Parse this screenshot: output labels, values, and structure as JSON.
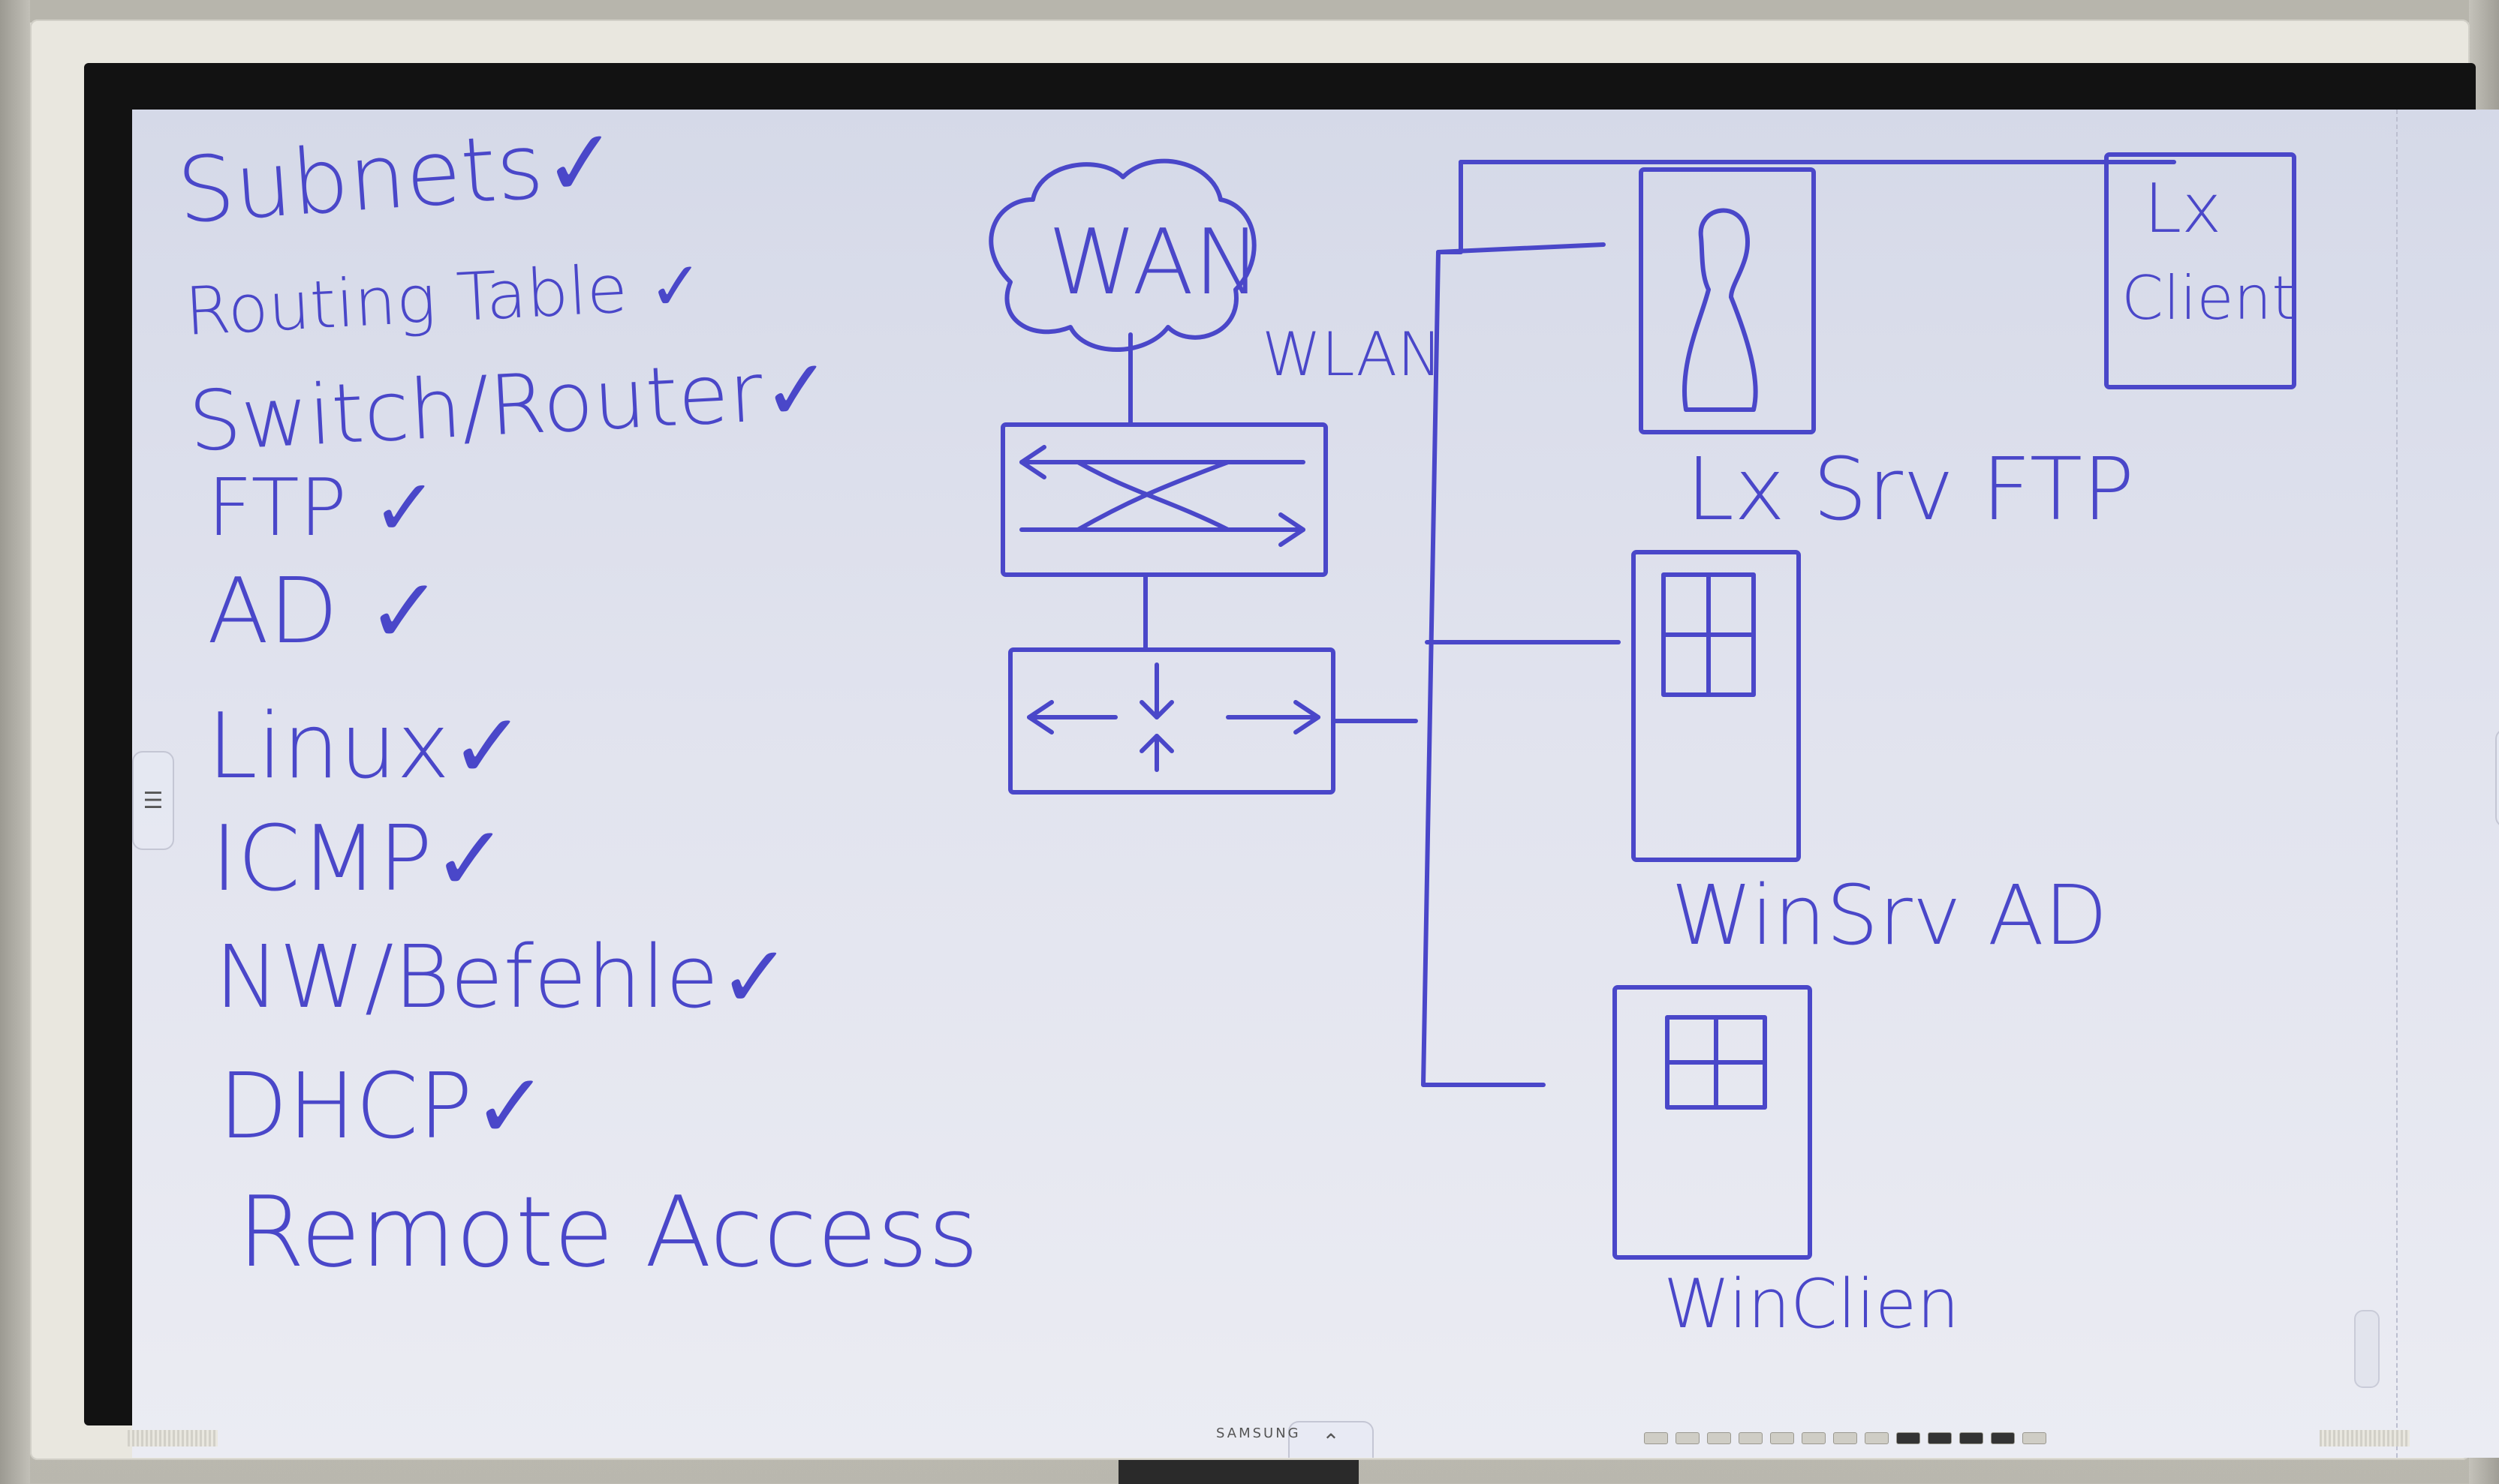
{
  "checklist": {
    "items": [
      {
        "label": "Subnets",
        "mark": "✓"
      },
      {
        "label": "Routing Table",
        "mark": "✓"
      },
      {
        "label": "Switch/Router",
        "mark": "✓"
      },
      {
        "label": "FTP",
        "mark": "✓"
      },
      {
        "label": "AD",
        "mark": "✓"
      },
      {
        "label": "Linux",
        "mark": "✓"
      },
      {
        "label": "ICMP",
        "mark": "✓"
      },
      {
        "label": "NW/Befehle",
        "mark": "✓"
      },
      {
        "label": "DHCP",
        "mark": "✓"
      },
      {
        "label": "Remote Access",
        "mark": ""
      }
    ]
  },
  "diagram": {
    "wan_label": "WAN",
    "wlan_label": "WLAN",
    "lx_client_line1": "Lx",
    "lx_client_line2": "Client",
    "lx_server_label": "Lx Srv FTP",
    "win_server_label": "WinSrv AD",
    "win_client_label": "WinClien"
  },
  "device": {
    "brand": "SAMSUNG"
  },
  "ui": {
    "side_menu_glyph": "☰",
    "bottom_handle_glyph": "⌃"
  },
  "colors": {
    "ink": "#4a47c9",
    "screen": "#e1e3ee",
    "bezel": "#e9e7df"
  }
}
